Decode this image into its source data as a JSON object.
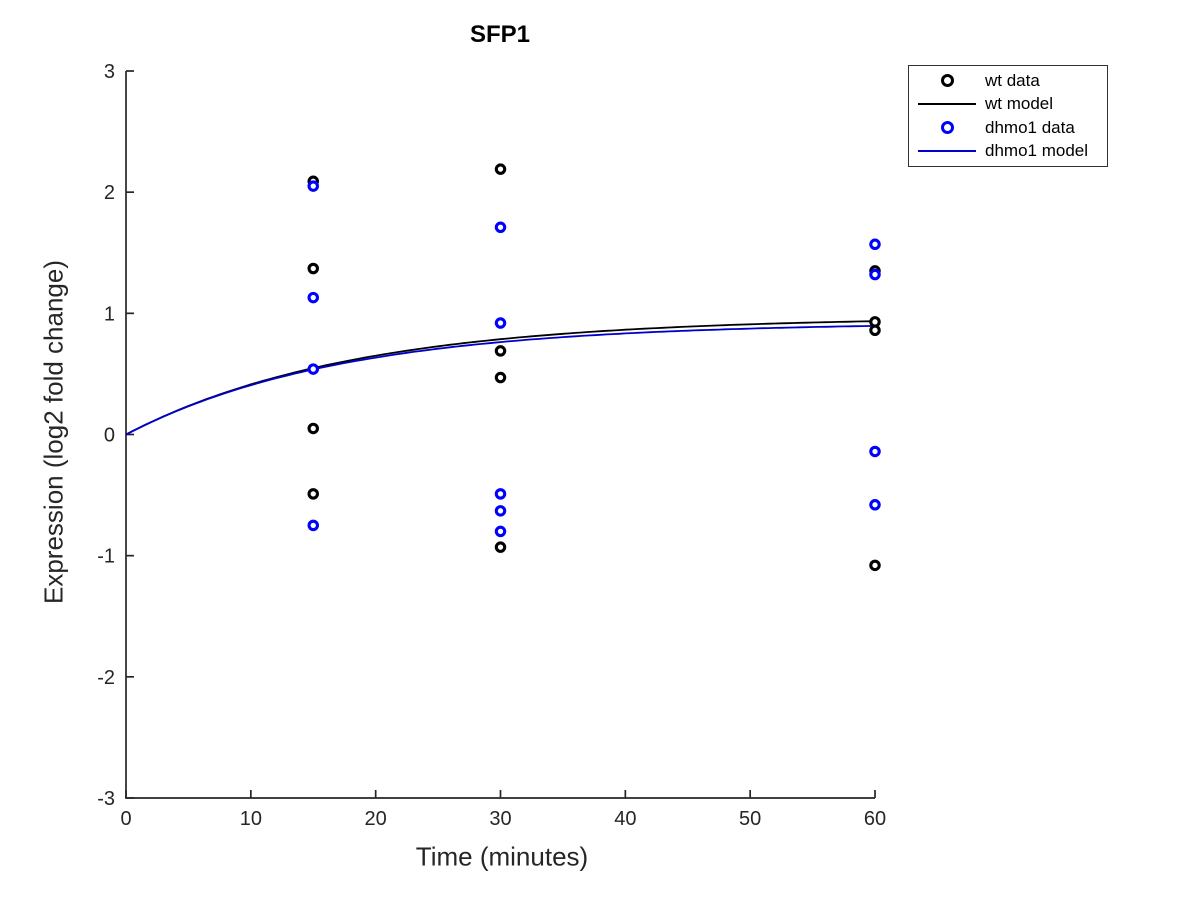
{
  "chart_data": {
    "type": "scatter",
    "title": "SFP1",
    "xlabel": "Time (minutes)",
    "ylabel": "Expression (log2 fold change)",
    "xlim": [
      0,
      60
    ],
    "ylim": [
      -3,
      3
    ],
    "x_ticks": [
      0,
      10,
      20,
      30,
      40,
      50,
      60
    ],
    "y_ticks": [
      -3,
      -2,
      -1,
      0,
      1,
      2,
      3
    ],
    "grid": false,
    "axis_color": "#262626",
    "series": [
      {
        "name": "wt data",
        "type": "scatter",
        "marker": "open-circle",
        "color": "#000000",
        "x": [
          15,
          15,
          15,
          15,
          30,
          30,
          30,
          30,
          60,
          60,
          60,
          60
        ],
        "y": [
          2.09,
          1.37,
          0.05,
          -0.49,
          2.19,
          0.69,
          0.47,
          -0.93,
          1.35,
          0.93,
          0.86,
          -1.08
        ]
      },
      {
        "name": "wt model",
        "type": "line",
        "color": "#000000",
        "formula": "y = A*(1-exp(-k*t))",
        "A": 0.97,
        "k": 0.0555
      },
      {
        "name": "dhmo1 data",
        "type": "scatter",
        "marker": "open-circle",
        "color": "#0000ff",
        "x": [
          15,
          15,
          15,
          15,
          30,
          30,
          30,
          30,
          30,
          60,
          60,
          60,
          60
        ],
        "y": [
          2.05,
          1.13,
          0.54,
          -0.75,
          1.71,
          0.92,
          -0.49,
          -0.63,
          -0.8,
          1.57,
          1.32,
          -0.14,
          -0.58
        ]
      },
      {
        "name": "dhmo1 model",
        "type": "line",
        "color": "#0000cd",
        "formula": "y = A*(1-exp(-k*t))",
        "A": 0.925,
        "k": 0.058
      }
    ],
    "legend": {
      "position": "top-right",
      "entries": [
        {
          "label": "wt data",
          "swatch": "marker",
          "color": "#000000"
        },
        {
          "label": "wt model",
          "swatch": "line",
          "color": "#000000"
        },
        {
          "label": "dhmo1 data",
          "swatch": "marker",
          "color": "#0000ff"
        },
        {
          "label": "dhmo1 model",
          "swatch": "line",
          "color": "#0000cd"
        }
      ]
    }
  }
}
